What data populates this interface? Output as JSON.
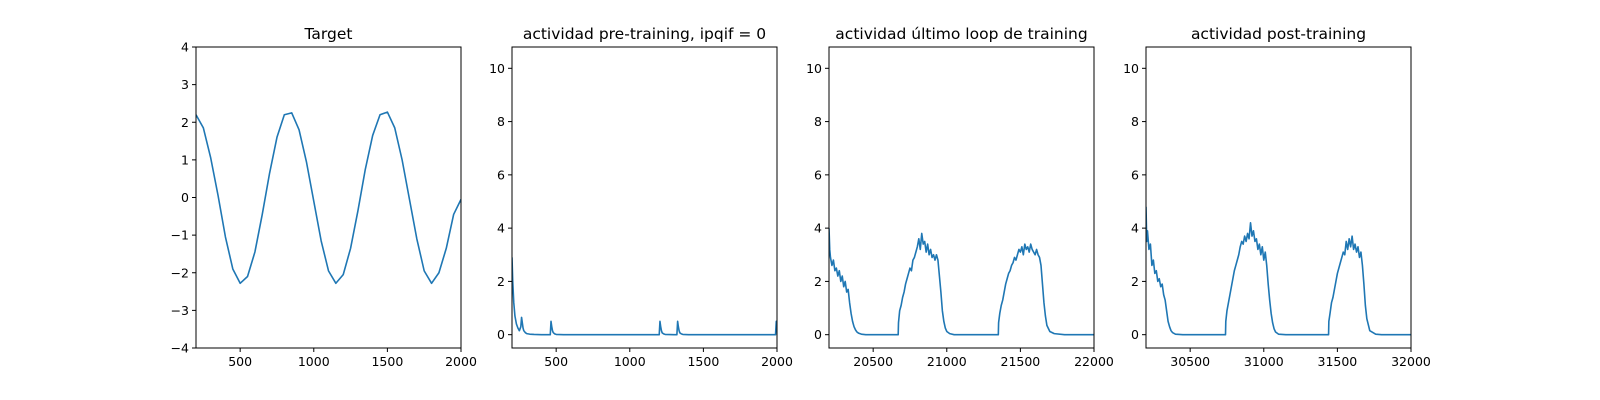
{
  "colors": {
    "series": "#1f77b4",
    "background": "#ffffff",
    "axes": "#000000"
  },
  "chart_data": [
    {
      "type": "line",
      "title": "Target",
      "xlim": [
        200,
        2000
      ],
      "ylim": [
        -4,
        4
      ],
      "xticks": [
        500,
        1000,
        1500,
        2000
      ],
      "xtick_labels": [
        "500",
        "1000",
        "1500",
        "2000"
      ],
      "yticks": [
        -4,
        -3,
        -2,
        -1,
        0,
        1,
        2,
        3,
        4
      ],
      "ytick_labels": [
        "−4",
        "−3",
        "−2",
        "−1",
        "0",
        "1",
        "2",
        "3",
        "4"
      ],
      "series": [
        {
          "x": [
            200,
            250,
            300,
            350,
            400,
            450,
            500,
            550,
            600,
            650,
            700,
            750,
            800,
            850,
            900,
            950,
            1000,
            1050,
            1100,
            1150,
            1200,
            1250,
            1300,
            1350,
            1400,
            1450,
            1500,
            1550,
            1600,
            1650,
            1700,
            1750,
            1800,
            1850,
            1900,
            1950,
            2000
          ],
          "values": [
            2.2,
            1.85,
            1.05,
            0.05,
            -1.05,
            -1.9,
            -2.28,
            -2.1,
            -1.45,
            -0.45,
            0.65,
            1.6,
            2.2,
            2.25,
            1.8,
            0.95,
            -0.1,
            -1.15,
            -1.95,
            -2.28,
            -2.05,
            -1.35,
            -0.35,
            0.75,
            1.65,
            2.2,
            2.27,
            1.85,
            1.0,
            -0.05,
            -1.1,
            -1.95,
            -2.28,
            -2.0,
            -1.35,
            -0.45,
            -0.05
          ]
        }
      ]
    },
    {
      "type": "line",
      "title": "actividad pre-training, ipqif = 0",
      "xlim": [
        200,
        2000
      ],
      "ylim": [
        -0.5,
        10.8
      ],
      "xticks": [
        500,
        1000,
        1500,
        2000
      ],
      "xtick_labels": [
        "500",
        "1000",
        "1500",
        "2000"
      ],
      "yticks": [
        0,
        2,
        4,
        6,
        8,
        10
      ],
      "ytick_labels": [
        "0",
        "2",
        "4",
        "6",
        "8",
        "10"
      ],
      "series": [
        {
          "x": [
            200,
            205,
            212,
            220,
            230,
            240,
            250,
            260,
            265,
            270,
            275,
            280,
            290,
            300,
            320,
            350,
            400,
            460,
            465,
            470,
            475,
            480,
            490,
            500,
            550,
            700,
            1000,
            1200,
            1205,
            1210,
            1215,
            1220,
            1230,
            1240,
            1300,
            1320,
            1325,
            1330,
            1335,
            1340,
            1350,
            1360,
            1400,
            1600,
            1800,
            1990,
            1995,
            2000
          ],
          "values": [
            2.9,
            2.0,
            1.2,
            0.7,
            0.4,
            0.25,
            0.15,
            0.3,
            0.65,
            0.45,
            0.25,
            0.15,
            0.08,
            0.04,
            0.02,
            0.01,
            0.0,
            0.0,
            0.5,
            0.3,
            0.15,
            0.08,
            0.03,
            0.01,
            0.0,
            0.0,
            0.0,
            0.0,
            0.5,
            0.3,
            0.15,
            0.07,
            0.03,
            0.01,
            0.0,
            0.0,
            0.5,
            0.3,
            0.15,
            0.07,
            0.03,
            0.01,
            0.0,
            0.0,
            0.0,
            0.0,
            0.5,
            0.3
          ]
        }
      ]
    },
    {
      "type": "line",
      "title": "actividad último loop de training",
      "xlim": [
        20200,
        22000
      ],
      "ylim": [
        -0.5,
        10.8
      ],
      "xticks": [
        20500,
        21000,
        21500,
        22000
      ],
      "xtick_labels": [
        "20500",
        "21000",
        "21500",
        "22000"
      ],
      "yticks": [
        0,
        2,
        4,
        6,
        8,
        10
      ],
      "ytick_labels": [
        "0",
        "2",
        "4",
        "6",
        "8",
        "10"
      ],
      "series": [
        {
          "x": [
            20200,
            20205,
            20210,
            20220,
            20230,
            20240,
            20250,
            20260,
            20270,
            20280,
            20290,
            20300,
            20310,
            20320,
            20330,
            20340,
            20350,
            20360,
            20370,
            20380,
            20390,
            20400,
            20420,
            20450,
            20500,
            20600,
            20670,
            20672,
            20680,
            20690,
            20700,
            20710,
            20720,
            20730,
            20740,
            20750,
            20760,
            20770,
            20780,
            20790,
            20800,
            20810,
            20820,
            20830,
            20840,
            20850,
            20860,
            20870,
            20880,
            20890,
            20900,
            20910,
            20920,
            20930,
            20940,
            20950,
            20960,
            20970,
            20980,
            20990,
            21000,
            21020,
            21050,
            21100,
            21200,
            21300,
            21350,
            21352,
            21360,
            21370,
            21380,
            21390,
            21400,
            21410,
            21420,
            21430,
            21440,
            21450,
            21460,
            21470,
            21480,
            21490,
            21500,
            21510,
            21520,
            21530,
            21540,
            21550,
            21560,
            21570,
            21580,
            21590,
            21600,
            21610,
            21620,
            21630,
            21640,
            21650,
            21660,
            21670,
            21680,
            21700,
            21730,
            21800,
            21900,
            22000
          ],
          "values": [
            4.0,
            3.2,
            2.9,
            2.6,
            2.8,
            2.4,
            2.5,
            2.2,
            2.4,
            2.0,
            2.2,
            1.8,
            2.0,
            1.6,
            1.7,
            1.2,
            0.8,
            0.5,
            0.3,
            0.18,
            0.1,
            0.06,
            0.02,
            0.0,
            0.0,
            0.0,
            0.0,
            0.45,
            0.9,
            1.1,
            1.4,
            1.6,
            1.9,
            2.1,
            2.3,
            2.5,
            2.4,
            2.8,
            2.9,
            3.1,
            3.3,
            3.6,
            3.2,
            3.8,
            3.4,
            3.5,
            3.1,
            3.4,
            3.0,
            3.2,
            2.9,
            3.0,
            2.8,
            3.0,
            2.8,
            2.2,
            1.6,
            0.9,
            0.5,
            0.25,
            0.12,
            0.04,
            0.0,
            0.0,
            0.0,
            0.0,
            0.0,
            0.45,
            0.8,
            1.1,
            1.3,
            1.6,
            1.9,
            2.1,
            2.3,
            2.4,
            2.6,
            2.7,
            2.9,
            2.8,
            3.0,
            3.2,
            3.1,
            3.3,
            3.0,
            3.4,
            3.2,
            3.3,
            3.1,
            3.4,
            3.2,
            3.1,
            3.0,
            3.2,
            3.0,
            2.9,
            2.6,
            1.9,
            1.2,
            0.7,
            0.35,
            0.12,
            0.04,
            0.0,
            0.0,
            0.0
          ]
        }
      ]
    },
    {
      "type": "line",
      "title": "actividad post-training",
      "xlim": [
        30200,
        32000
      ],
      "ylim": [
        -0.5,
        10.8
      ],
      "xticks": [
        30500,
        31000,
        31500,
        32000
      ],
      "xtick_labels": [
        "30500",
        "31000",
        "31500",
        "32000"
      ],
      "yticks": [
        0,
        2,
        4,
        6,
        8,
        10
      ],
      "ytick_labels": [
        "0",
        "2",
        "4",
        "6",
        "8",
        "10"
      ],
      "series": [
        {
          "x": [
            30200,
            30205,
            30210,
            30220,
            30230,
            30240,
            30250,
            30260,
            30270,
            30280,
            30290,
            30300,
            30310,
            30320,
            30330,
            30340,
            30350,
            30360,
            30370,
            30380,
            30400,
            30450,
            30500,
            30600,
            30700,
            30740,
            30742,
            30750,
            30760,
            30770,
            30780,
            30790,
            30800,
            30810,
            30820,
            30830,
            30840,
            30850,
            30860,
            30870,
            30880,
            30890,
            30900,
            30910,
            30920,
            30930,
            30940,
            30950,
            30960,
            30970,
            30980,
            30990,
            31000,
            31010,
            31020,
            31030,
            31040,
            31050,
            31060,
            31070,
            31080,
            31100,
            31150,
            31200,
            31300,
            31400,
            31440,
            31442,
            31450,
            31460,
            31470,
            31480,
            31490,
            31500,
            31510,
            31520,
            31530,
            31540,
            31550,
            31560,
            31570,
            31580,
            31590,
            31600,
            31610,
            31620,
            31630,
            31640,
            31650,
            31660,
            31670,
            31680,
            31690,
            31700,
            31720,
            31760,
            31800,
            31900,
            32000
          ],
          "values": [
            4.8,
            3.5,
            3.9,
            3.2,
            3.4,
            2.6,
            2.8,
            2.3,
            2.4,
            2.0,
            2.1,
            1.8,
            1.9,
            1.5,
            1.3,
            0.9,
            0.5,
            0.3,
            0.15,
            0.08,
            0.02,
            0.0,
            0.0,
            0.0,
            0.0,
            0.0,
            0.5,
            0.9,
            1.2,
            1.5,
            1.8,
            2.1,
            2.4,
            2.6,
            2.8,
            3.0,
            3.3,
            3.5,
            3.4,
            3.7,
            3.5,
            3.8,
            3.6,
            4.2,
            3.7,
            3.9,
            3.5,
            3.6,
            3.2,
            3.4,
            3.0,
            3.3,
            2.8,
            3.1,
            2.6,
            1.9,
            1.3,
            0.8,
            0.45,
            0.22,
            0.1,
            0.02,
            0.0,
            0.0,
            0.0,
            0.0,
            0.0,
            0.5,
            0.8,
            1.2,
            1.4,
            1.7,
            2.0,
            2.3,
            2.5,
            2.7,
            2.9,
            3.1,
            3.0,
            3.5,
            3.2,
            3.6,
            3.3,
            3.7,
            3.2,
            3.4,
            3.1,
            3.3,
            2.9,
            3.1,
            2.6,
            1.9,
            1.1,
            0.6,
            0.15,
            0.02,
            0.0,
            0.0,
            0.0
          ]
        }
      ]
    }
  ]
}
